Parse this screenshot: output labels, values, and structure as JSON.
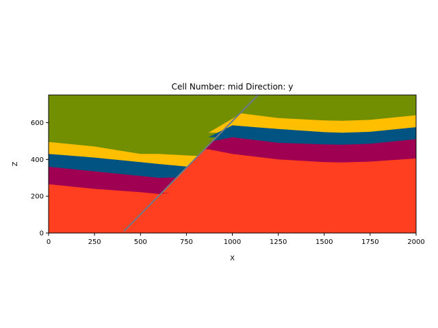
{
  "chart_data": {
    "type": "area",
    "title": "Cell Number: mid Direction: y",
    "xlabel": "X",
    "ylabel": "Z",
    "xlim": [
      0,
      2000
    ],
    "ylim": [
      0,
      750
    ],
    "xticks": [
      0,
      250,
      500,
      750,
      1000,
      1250,
      1500,
      1750,
      2000
    ],
    "yticks": [
      0,
      200,
      400,
      600
    ],
    "grid": false,
    "layers": [
      {
        "color": "#ff3f20",
        "top_left": [
          [
            0,
            265
          ],
          [
            250,
            240
          ],
          [
            500,
            222
          ],
          [
            600,
            212
          ],
          [
            660,
            218
          ]
        ],
        "top_right": [
          [
            870,
            455
          ],
          [
            1000,
            430
          ],
          [
            1250,
            400
          ],
          [
            1500,
            385
          ],
          [
            1600,
            383
          ],
          [
            1750,
            388
          ],
          [
            2000,
            405
          ]
        ]
      },
      {
        "color": "#9f0052",
        "top_left": [
          [
            0,
            360
          ],
          [
            250,
            335
          ],
          [
            500,
            310
          ],
          [
            600,
            300
          ],
          [
            700,
            302
          ]
        ],
        "top_right": [
          [
            870,
            495
          ],
          [
            1000,
            520
          ],
          [
            1250,
            490
          ],
          [
            1500,
            482
          ],
          [
            1600,
            480
          ],
          [
            1750,
            485
          ],
          [
            2000,
            510
          ]
        ]
      },
      {
        "color": "#015482",
        "top_left": [
          [
            0,
            430
          ],
          [
            250,
            410
          ],
          [
            500,
            385
          ],
          [
            600,
            375
          ],
          [
            760,
            360
          ]
        ],
        "top_right": [
          [
            870,
            520
          ],
          [
            1000,
            585
          ],
          [
            1250,
            565
          ],
          [
            1500,
            548
          ],
          [
            1600,
            545
          ],
          [
            1750,
            550
          ],
          [
            2000,
            575
          ]
        ]
      },
      {
        "color": "#ffbe00",
        "top_left": [
          [
            0,
            495
          ],
          [
            250,
            470
          ],
          [
            500,
            430
          ],
          [
            600,
            430
          ],
          [
            780,
            420
          ]
        ],
        "top_right": [
          [
            870,
            545
          ],
          [
            1050,
            650
          ],
          [
            1250,
            625
          ],
          [
            1500,
            612
          ],
          [
            1600,
            610
          ],
          [
            1750,
            615
          ],
          [
            2000,
            640
          ]
        ]
      },
      {
        "color": "#728f02",
        "top_left": [
          [
            0,
            750
          ],
          [
            2000,
            750
          ]
        ],
        "top_right": []
      }
    ],
    "fault": {
      "color": "#6d7a87",
      "points": [
        [
          410,
          10
        ],
        [
          1140,
          750
        ]
      ]
    }
  }
}
